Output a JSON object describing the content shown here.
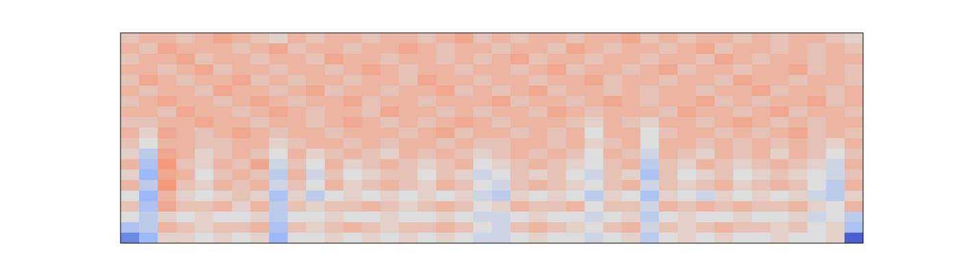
{
  "chart_data": {
    "type": "heatmap",
    "colormap": "coolwarm",
    "zlim": [
      -1,
      1
    ],
    "z": [
      [
        0.2,
        0.3,
        0.3,
        0.2,
        0.3,
        0.4,
        0.3,
        0.2,
        0.1,
        0.3,
        0.2,
        0.3,
        0.3,
        0.2,
        0.3,
        0.3,
        0.2,
        0.3,
        0.4,
        0.2,
        0.3,
        0.2,
        0.3,
        0.3,
        0.2,
        0.3,
        0.3,
        0.4,
        0.2,
        0.3,
        0.2,
        0.3,
        0.3,
        0.2,
        0.3,
        0.2,
        0.3,
        0.3,
        0.2,
        0.1
      ],
      [
        0.3,
        0.2,
        0.4,
        0.3,
        0.3,
        0.3,
        0.2,
        0.3,
        0.4,
        0.2,
        0.3,
        0.3,
        0.2,
        0.3,
        0.3,
        0.4,
        0.3,
        0.2,
        0.3,
        0.3,
        0.2,
        0.3,
        0.3,
        0.2,
        0.4,
        0.3,
        0.2,
        0.3,
        0.3,
        0.2,
        0.3,
        0.4,
        0.2,
        0.3,
        0.3,
        0.2,
        0.3,
        0.2,
        0.3,
        0.2
      ],
      [
        0.2,
        0.3,
        0.3,
        0.4,
        0.2,
        0.3,
        0.3,
        0.2,
        0.3,
        0.3,
        0.2,
        0.4,
        0.3,
        0.3,
        0.2,
        0.3,
        0.3,
        0.2,
        0.3,
        0.2,
        0.3,
        0.4,
        0.2,
        0.3,
        0.3,
        0.2,
        0.3,
        0.3,
        0.2,
        0.3,
        0.3,
        0.2,
        0.4,
        0.3,
        0.2,
        0.3,
        0.3,
        0.2,
        0.3,
        0.3
      ],
      [
        0.3,
        0.3,
        0.2,
        0.3,
        0.4,
        0.2,
        0.3,
        0.3,
        0.2,
        0.3,
        0.3,
        0.2,
        0.3,
        0.4,
        0.3,
        0.2,
        0.3,
        0.3,
        0.2,
        0.3,
        0.3,
        0.2,
        0.3,
        0.4,
        0.2,
        0.3,
        0.3,
        0.2,
        0.3,
        0.4,
        0.2,
        0.3,
        0.3,
        0.2,
        0.3,
        0.3,
        0.4,
        0.2,
        0.3,
        0.2
      ],
      [
        0.2,
        0.4,
        0.3,
        0.2,
        0.3,
        0.3,
        0.4,
        0.2,
        0.3,
        0.2,
        0.3,
        0.3,
        0.2,
        0.3,
        0.3,
        0.2,
        0.4,
        0.3,
        0.3,
        0.2,
        0.3,
        0.3,
        0.2,
        0.3,
        0.3,
        0.4,
        0.2,
        0.3,
        0.3,
        0.2,
        0.3,
        0.3,
        0.2,
        0.4,
        0.3,
        0.3,
        0.2,
        0.3,
        0.3,
        0.2
      ],
      [
        0.3,
        0.2,
        0.3,
        0.3,
        0.2,
        0.4,
        0.3,
        0.3,
        0.2,
        0.3,
        0.4,
        0.2,
        0.3,
        0.3,
        0.2,
        0.3,
        0.3,
        0.4,
        0.2,
        0.3,
        0.2,
        0.3,
        0.4,
        0.2,
        0.3,
        0.3,
        0.2,
        0.3,
        0.2,
        0.3,
        0.3,
        0.2,
        0.3,
        0.3,
        0.4,
        0.2,
        0.3,
        0.3,
        0.2,
        0.3
      ],
      [
        0.2,
        0.3,
        0.4,
        0.3,
        0.3,
        0.2,
        0.3,
        0.4,
        0.3,
        0.2,
        0.3,
        0.3,
        0.4,
        0.2,
        0.3,
        0.3,
        0.2,
        0.3,
        0.3,
        0.3,
        0.4,
        0.2,
        0.3,
        0.3,
        0.2,
        0.3,
        0.4,
        0.3,
        0.2,
        0.3,
        0.3,
        0.4,
        0.2,
        0.3,
        0.2,
        0.3,
        0.3,
        0.4,
        0.2,
        0.3
      ],
      [
        0.3,
        0.3,
        0.2,
        0.4,
        0.3,
        0.3,
        0.2,
        0.3,
        0.4,
        0.3,
        0.2,
        0.3,
        0.3,
        0.2,
        0.4,
        0.3,
        0.3,
        0.2,
        0.3,
        0.2,
        0.3,
        0.3,
        0.2,
        0.4,
        0.3,
        0.2,
        0.3,
        0.3,
        0.3,
        0.2,
        0.4,
        0.3,
        0.3,
        0.2,
        0.3,
        0.4,
        0.2,
        0.3,
        0.3,
        0.2
      ],
      [
        0.2,
        0.2,
        0.3,
        0.3,
        0.4,
        0.3,
        0.3,
        0.2,
        0.3,
        0.3,
        0.2,
        0.3,
        0.4,
        0.3,
        0.2,
        0.3,
        0.2,
        0.3,
        0.4,
        0.3,
        0.2,
        0.3,
        0.3,
        0.3,
        0.2,
        0.1,
        0.3,
        0.2,
        0.1,
        0.3,
        0.3,
        0.2,
        0.3,
        0.4,
        0.3,
        0.2,
        0.3,
        0.2,
        0.3,
        0.3
      ],
      [
        0.3,
        0.1,
        0.4,
        0.3,
        0.2,
        0.3,
        0.4,
        0.3,
        0.2,
        0.3,
        0.3,
        0.2,
        0.3,
        0.3,
        0.3,
        0.2,
        0.3,
        0.4,
        0.2,
        0.3,
        0.3,
        0.2,
        0.3,
        0.2,
        0.3,
        0.0,
        0.3,
        0.3,
        0.0,
        0.2,
        0.3,
        0.3,
        0.2,
        0.3,
        0.2,
        0.3,
        0.4,
        0.2,
        0.3,
        0.2
      ],
      [
        0.2,
        0.0,
        0.3,
        0.3,
        0.2,
        0.2,
        0.3,
        0.3,
        0.1,
        0.2,
        0.3,
        0.3,
        0.2,
        0.3,
        0.2,
        0.3,
        0.3,
        0.2,
        0.3,
        0.2,
        0.2,
        0.3,
        0.3,
        0.2,
        0.3,
        0.1,
        0.2,
        0.3,
        0.0,
        0.3,
        0.3,
        0.2,
        0.3,
        0.2,
        0.3,
        0.2,
        0.3,
        0.2,
        0.1,
        0.3
      ],
      [
        0.1,
        -0.2,
        0.4,
        0.3,
        0.1,
        0.2,
        0.3,
        0.2,
        0.0,
        0.3,
        0.1,
        0.2,
        0.3,
        0.2,
        0.1,
        0.3,
        0.2,
        0.3,
        0.2,
        0.1,
        0.2,
        0.3,
        0.2,
        0.3,
        0.2,
        0.0,
        0.3,
        0.2,
        -0.1,
        0.3,
        0.2,
        0.1,
        0.3,
        0.2,
        0.3,
        0.1,
        0.3,
        0.2,
        0.0,
        0.2
      ],
      [
        0.3,
        -0.3,
        0.5,
        0.2,
        0.1,
        0.3,
        0.2,
        0.4,
        -0.1,
        0.2,
        0.0,
        0.3,
        0.1,
        0.2,
        0.3,
        0.2,
        0.1,
        0.2,
        0.3,
        0.0,
        0.1,
        0.2,
        0.3,
        0.2,
        0.1,
        0.0,
        0.2,
        0.3,
        -0.2,
        0.2,
        0.1,
        0.3,
        0.2,
        0.1,
        0.2,
        0.3,
        0.2,
        0.1,
        -0.1,
        0.3
      ],
      [
        0.1,
        -0.4,
        0.4,
        0.3,
        0.0,
        0.2,
        0.3,
        0.2,
        -0.2,
        0.3,
        -0.1,
        0.2,
        0.0,
        0.1,
        0.2,
        0.2,
        0.0,
        0.2,
        0.1,
        -0.1,
        0.0,
        0.2,
        0.1,
        0.2,
        0.0,
        -0.1,
        0.2,
        0.1,
        -0.3,
        0.2,
        0.0,
        0.1,
        0.2,
        0.0,
        0.1,
        0.2,
        0.1,
        0.0,
        -0.1,
        0.2
      ],
      [
        0.3,
        -0.2,
        0.5,
        0.2,
        0.1,
        0.3,
        0.2,
        0.3,
        -0.1,
        0.2,
        0.0,
        0.3,
        0.1,
        0.2,
        0.3,
        0.2,
        0.1,
        0.3,
        0.2,
        0.0,
        -0.1,
        0.2,
        0.3,
        0.2,
        0.1,
        0.0,
        0.2,
        0.3,
        -0.1,
        0.2,
        0.1,
        0.2,
        0.3,
        0.1,
        0.2,
        0.3,
        0.2,
        0.0,
        -0.2,
        0.3
      ],
      [
        0.0,
        -0.4,
        0.3,
        0.1,
        0.0,
        0.1,
        0.2,
        0.1,
        -0.3,
        0.1,
        -0.2,
        0.0,
        0.1,
        0.0,
        0.1,
        0.0,
        0.1,
        0.0,
        0.1,
        -0.1,
        -0.2,
        0.1,
        0.0,
        0.1,
        0.0,
        -0.2,
        0.1,
        0.0,
        -0.3,
        0.1,
        0.0,
        -0.1,
        0.1,
        0.0,
        0.1,
        0.0,
        0.1,
        -0.1,
        -0.2,
        0.1
      ],
      [
        0.2,
        -0.3,
        0.4,
        0.2,
        0.2,
        0.3,
        0.1,
        0.3,
        -0.2,
        0.2,
        0.1,
        0.2,
        0.2,
        0.3,
        0.2,
        0.1,
        0.2,
        0.3,
        0.2,
        0.0,
        0.1,
        0.3,
        0.2,
        0.2,
        0.3,
        0.0,
        0.2,
        0.2,
        -0.1,
        0.3,
        0.2,
        0.3,
        0.2,
        0.3,
        0.2,
        0.2,
        0.3,
        0.1,
        0.0,
        0.3
      ],
      [
        0.0,
        -0.2,
        0.1,
        0.0,
        0.1,
        0.0,
        0.0,
        0.1,
        -0.2,
        0.0,
        0.0,
        0.1,
        0.0,
        0.0,
        0.1,
        0.0,
        0.0,
        0.1,
        0.0,
        -0.1,
        -0.1,
        0.0,
        0.1,
        0.0,
        0.0,
        -0.1,
        0.0,
        0.1,
        -0.2,
        0.0,
        0.1,
        0.0,
        0.0,
        0.1,
        0.0,
        0.0,
        0.1,
        -0.1,
        0.0,
        -0.2
      ],
      [
        -0.3,
        -0.2,
        0.3,
        0.2,
        0.1,
        0.2,
        0.2,
        0.3,
        -0.3,
        0.2,
        0.1,
        0.2,
        0.3,
        0.2,
        0.1,
        0.2,
        0.2,
        0.3,
        0.2,
        0.0,
        -0.1,
        0.2,
        0.3,
        0.2,
        0.1,
        0.0,
        0.2,
        0.3,
        -0.1,
        0.2,
        0.1,
        0.2,
        0.3,
        0.2,
        0.2,
        0.1,
        0.2,
        0.0,
        0.1,
        -0.3
      ],
      [
        -0.7,
        -0.4,
        0.1,
        0.1,
        0.0,
        0.1,
        0.0,
        0.1,
        -0.4,
        0.0,
        0.0,
        0.1,
        0.0,
        0.1,
        0.0,
        0.1,
        0.0,
        0.1,
        0.0,
        -0.1,
        -0.1,
        0.0,
        0.1,
        0.0,
        0.0,
        -0.1,
        0.0,
        0.1,
        -0.2,
        0.0,
        0.1,
        0.0,
        0.1,
        0.0,
        0.0,
        0.1,
        0.0,
        0.0,
        0.1,
        -0.9
      ]
    ]
  }
}
